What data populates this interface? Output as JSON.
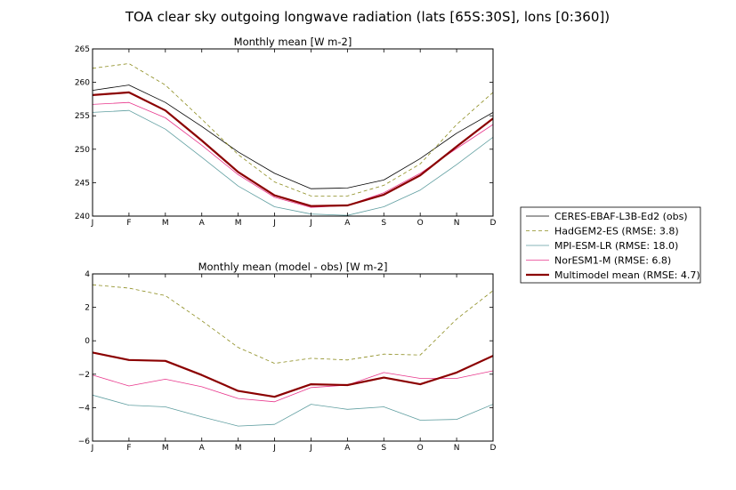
{
  "title": "TOA clear sky outgoing longwave radiation (lats [65S:30S], lons [0:360])",
  "chart_data": [
    {
      "type": "line",
      "title": "Monthly mean [W m-2]",
      "categories": [
        "J",
        "F",
        "M",
        "A",
        "M",
        "J",
        "J",
        "A",
        "S",
        "O",
        "N",
        "D"
      ],
      "ylim": [
        240,
        265
      ],
      "yticks": [
        240,
        245,
        250,
        255,
        260,
        265
      ],
      "grid": false,
      "series": [
        {
          "name": "CERES-EBAF-L3B-Ed2 (obs)",
          "color": "#000000",
          "style": "solid",
          "width": 0.8,
          "values": [
            258.8,
            259.6,
            257.0,
            253.4,
            249.6,
            246.4,
            244.1,
            244.2,
            245.4,
            248.6,
            252.4,
            255.5
          ]
        },
        {
          "name": "HadGEM2-ES (RMSE: 3.8)",
          "color": "#8c8c1e",
          "style": "dashed",
          "width": 0.8,
          "values": [
            262.1,
            262.8,
            259.6,
            254.5,
            249.2,
            245.1,
            243.0,
            243.0,
            244.6,
            247.8,
            253.7,
            258.5
          ]
        },
        {
          "name": "MPI-ESM-LR (RMSE: 18.0)",
          "color": "#5f9ea0",
          "style": "solid",
          "width": 0.8,
          "values": [
            255.5,
            255.8,
            253.0,
            248.8,
            244.5,
            241.4,
            240.3,
            240.1,
            241.4,
            243.9,
            247.7,
            251.8
          ]
        },
        {
          "name": "NorESM1-M (RMSE: 6.8)",
          "color": "#e8378c",
          "style": "solid",
          "width": 0.8,
          "values": [
            256.7,
            257.0,
            254.7,
            250.6,
            246.2,
            242.8,
            241.3,
            241.6,
            243.5,
            246.4,
            250.1,
            253.7
          ]
        },
        {
          "name": "Multimodel mean (RMSE: 4.7)",
          "color": "#8b0000",
          "style": "solid",
          "width": 2.2,
          "values": [
            258.1,
            258.5,
            255.8,
            251.3,
            246.6,
            243.1,
            241.5,
            241.6,
            243.2,
            246.1,
            250.4,
            254.6
          ]
        }
      ]
    },
    {
      "type": "line",
      "title": "Monthly mean (model - obs) [W m-2]",
      "categories": [
        "J",
        "F",
        "M",
        "A",
        "M",
        "J",
        "J",
        "A",
        "S",
        "O",
        "N",
        "D"
      ],
      "ylim": [
        -6,
        4
      ],
      "yticks": [
        -6,
        -4,
        -2,
        0,
        2,
        4
      ],
      "grid": false,
      "series": [
        {
          "name": "HadGEM2-ES (RMSE: 3.8)",
          "color": "#8c8c1e",
          "style": "dashed",
          "width": 0.8,
          "values": [
            3.35,
            3.15,
            2.7,
            1.2,
            -0.4,
            -1.35,
            -1.05,
            -1.15,
            -0.8,
            -0.85,
            1.3,
            3.0
          ]
        },
        {
          "name": "MPI-ESM-LR (RMSE: 18.0)",
          "color": "#5f9ea0",
          "style": "solid",
          "width": 0.8,
          "values": [
            -3.25,
            -3.85,
            -3.95,
            -4.55,
            -5.1,
            -5.0,
            -3.8,
            -4.1,
            -3.95,
            -4.75,
            -4.7,
            -3.8
          ]
        },
        {
          "name": "NorESM1-M (RMSE: 6.8)",
          "color": "#e8378c",
          "style": "solid",
          "width": 0.8,
          "values": [
            -2.05,
            -2.7,
            -2.3,
            -2.75,
            -3.45,
            -3.65,
            -2.8,
            -2.65,
            -1.9,
            -2.25,
            -2.25,
            -1.8
          ]
        },
        {
          "name": "Multimodel mean (RMSE: 4.7)",
          "color": "#8b0000",
          "style": "solid",
          "width": 2.2,
          "values": [
            -0.7,
            -1.15,
            -1.2,
            -2.05,
            -3.0,
            -3.35,
            -2.6,
            -2.65,
            -2.2,
            -2.6,
            -1.9,
            -0.9
          ]
        }
      ]
    }
  ],
  "legend": {
    "placement": "right",
    "entries": [
      {
        "label": "CERES-EBAF-L3B-Ed2 (obs)",
        "color": "#000000",
        "style": "solid",
        "width": 0.8
      },
      {
        "label": "HadGEM2-ES (RMSE: 3.8)",
        "color": "#8c8c1e",
        "style": "dashed",
        "width": 0.8
      },
      {
        "label": "MPI-ESM-LR (RMSE: 18.0)",
        "color": "#5f9ea0",
        "style": "solid",
        "width": 0.8
      },
      {
        "label": "NorESM1-M (RMSE: 6.8)",
        "color": "#e8378c",
        "style": "solid",
        "width": 0.8
      },
      {
        "label": "Multimodel mean (RMSE: 4.7)",
        "color": "#8b0000",
        "style": "solid",
        "width": 2.2
      }
    ]
  }
}
